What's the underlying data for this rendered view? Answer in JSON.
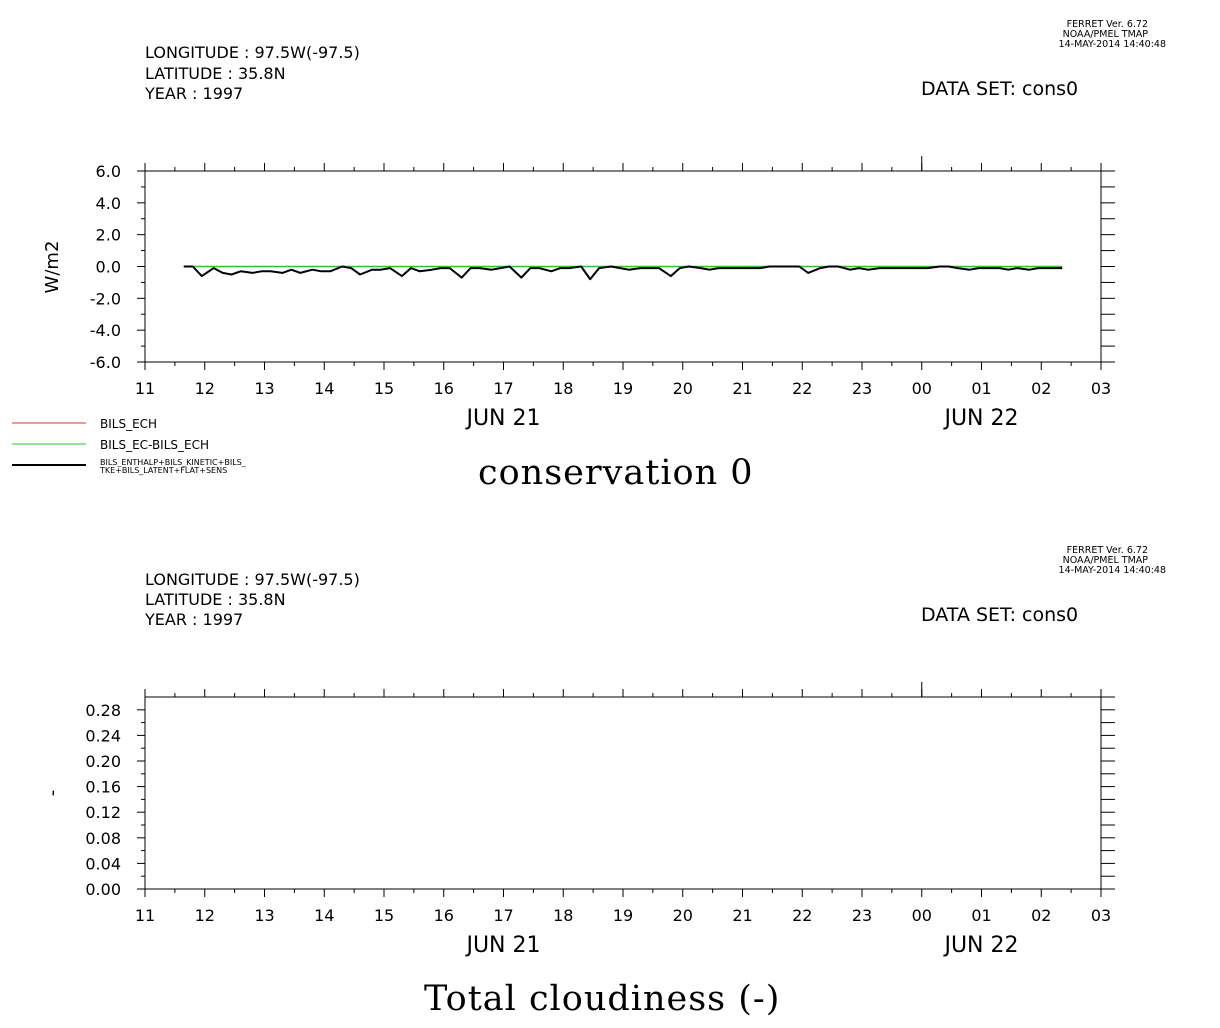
{
  "panels": [
    {
      "header": {
        "longitude": "LONGITUDE : 97.5W(-97.5)",
        "latitude": "LATITUDE : 35.8N",
        "year": "YEAR : 1997"
      },
      "ferret": {
        "version": "FERRET Ver. 6.72",
        "org": "NOAA/PMEL TMAP",
        "timestamp": "14-MAY-2014 14:40:48"
      },
      "dataset": "DATA SET: cons0",
      "title": "conservation 0",
      "legend": [
        {
          "label": "BILS_ECH",
          "color": "#e03030"
        },
        {
          "label": "BILS_EC-BILS_ECH",
          "color": "#30c030"
        },
        {
          "label_line1": "BILS_ENTHALP+BILS_KINETIC+BILS_",
          "label_line2": "TKE+BILS_LATENT+FLAT+SENS",
          "color": "#000000"
        }
      ]
    },
    {
      "header": {
        "longitude": "LONGITUDE : 97.5W(-97.5)",
        "latitude": "LATITUDE : 35.8N",
        "year": "YEAR : 1997"
      },
      "ferret": {
        "version": "FERRET Ver. 6.72",
        "org": "NOAA/PMEL TMAP",
        "timestamp": "14-MAY-2014 14:40:48"
      },
      "dataset": "DATA SET: cons0",
      "title": "Total cloudiness (-)"
    }
  ],
  "chart_data": [
    {
      "type": "line",
      "title": "conservation 0",
      "ylabel": "W/m2",
      "ylim": [
        -6.0,
        6.0
      ],
      "yticks": [
        -6.0,
        -4.0,
        -2.0,
        0.0,
        2.0,
        4.0,
        6.0
      ],
      "ytick_labels": [
        "-6.0",
        "-4.0",
        "-2.0",
        "0.0",
        "2.0",
        "4.0",
        "6.0"
      ],
      "xlim": [
        11,
        27
      ],
      "x_tick_labels": [
        "11",
        "12",
        "13",
        "14",
        "15",
        "16",
        "17",
        "18",
        "19",
        "20",
        "21",
        "22",
        "23",
        "00",
        "01",
        "02",
        "03"
      ],
      "date_labels": [
        {
          "label": "JUN 21",
          "at": 17
        },
        {
          "label": "JUN 22",
          "at": 25
        }
      ],
      "series": [
        {
          "name": "BILS_ECH",
          "color": "#e03030",
          "x": [
            11.65,
            26.35
          ],
          "y": [
            0.0,
            0.0
          ]
        },
        {
          "name": "BILS_EC-BILS_ECH",
          "color": "#30c030",
          "x": [
            11.65,
            26.35
          ],
          "y": [
            0.0,
            0.0
          ]
        },
        {
          "name": "BILS_ENTHALP+BILS_KINETIC+BILS_TKE+BILS_LATENT+FLAT+SENS",
          "color": "#000000",
          "x": [
            11.65,
            11.8,
            11.95,
            12.15,
            12.3,
            12.45,
            12.6,
            12.8,
            12.95,
            13.1,
            13.3,
            13.45,
            13.6,
            13.8,
            13.95,
            14.1,
            14.3,
            14.45,
            14.6,
            14.8,
            14.95,
            15.1,
            15.3,
            15.45,
            15.6,
            15.8,
            15.95,
            16.1,
            16.3,
            16.45,
            16.6,
            16.8,
            16.95,
            17.1,
            17.3,
            17.45,
            17.6,
            17.8,
            17.95,
            18.1,
            18.3,
            18.45,
            18.6,
            18.8,
            18.95,
            19.1,
            19.3,
            19.45,
            19.6,
            19.8,
            19.95,
            20.1,
            20.3,
            20.45,
            20.6,
            20.8,
            20.95,
            21.1,
            21.3,
            21.45,
            21.6,
            21.8,
            21.95,
            22.1,
            22.3,
            22.45,
            22.6,
            22.8,
            22.95,
            23.1,
            23.3,
            23.45,
            23.6,
            23.8,
            23.95,
            24.1,
            24.3,
            24.45,
            24.6,
            24.8,
            24.95,
            25.1,
            25.3,
            25.45,
            25.6,
            25.8,
            25.95,
            26.1,
            26.35
          ],
          "y": [
            0.0,
            0.0,
            -0.6,
            -0.1,
            -0.4,
            -0.5,
            -0.3,
            -0.4,
            -0.3,
            -0.3,
            -0.4,
            -0.2,
            -0.4,
            -0.2,
            -0.3,
            -0.3,
            0.0,
            -0.1,
            -0.5,
            -0.2,
            -0.2,
            -0.1,
            -0.6,
            -0.1,
            -0.3,
            -0.2,
            -0.1,
            -0.1,
            -0.7,
            -0.1,
            -0.1,
            -0.2,
            -0.1,
            0.0,
            -0.7,
            -0.1,
            -0.1,
            -0.3,
            -0.1,
            -0.1,
            0.0,
            -0.8,
            -0.1,
            0.0,
            -0.1,
            -0.2,
            -0.1,
            -0.1,
            -0.1,
            -0.6,
            -0.1,
            0.0,
            -0.1,
            -0.2,
            -0.1,
            -0.1,
            -0.1,
            -0.1,
            -0.1,
            0.0,
            0.0,
            0.0,
            0.0,
            -0.4,
            -0.1,
            0.0,
            0.0,
            -0.2,
            -0.1,
            -0.2,
            -0.1,
            -0.1,
            -0.1,
            -0.1,
            -0.1,
            -0.1,
            0.0,
            0.0,
            -0.1,
            -0.2,
            -0.1,
            -0.1,
            -0.1,
            -0.2,
            -0.1,
            -0.2,
            -0.1,
            -0.1,
            -0.1
          ]
        }
      ]
    },
    {
      "type": "line",
      "title": "Total cloudiness (-)",
      "ylabel": "-",
      "ylim": [
        0.0,
        0.3
      ],
      "yticks": [
        0.0,
        0.04,
        0.08,
        0.12,
        0.16,
        0.2,
        0.24,
        0.28
      ],
      "ytick_labels": [
        "0.00",
        "0.04",
        "0.08",
        "0.12",
        "0.16",
        "0.20",
        "0.24",
        "0.28"
      ],
      "xlim": [
        11,
        27
      ],
      "x_tick_labels": [
        "11",
        "12",
        "13",
        "14",
        "15",
        "16",
        "17",
        "18",
        "19",
        "20",
        "21",
        "22",
        "23",
        "00",
        "01",
        "02",
        "03"
      ],
      "date_labels": [
        {
          "label": "JUN 21",
          "at": 17
        },
        {
          "label": "JUN 22",
          "at": 25
        }
      ],
      "series": []
    }
  ]
}
